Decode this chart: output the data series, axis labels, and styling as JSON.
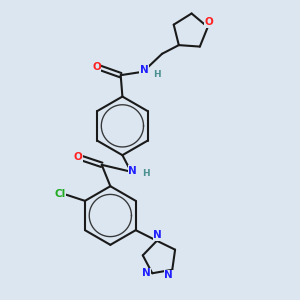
{
  "background_color": "#dce6f0",
  "bond_color": "#1a1a1a",
  "bond_lw": 1.5,
  "colors": {
    "C": "#1a1a1a",
    "N": "#2020ff",
    "O": "#ff2020",
    "Cl": "#20aa20",
    "H": "#4a9090"
  },
  "aromatic_inner_ratio": 0.72,
  "fs": 7.5
}
